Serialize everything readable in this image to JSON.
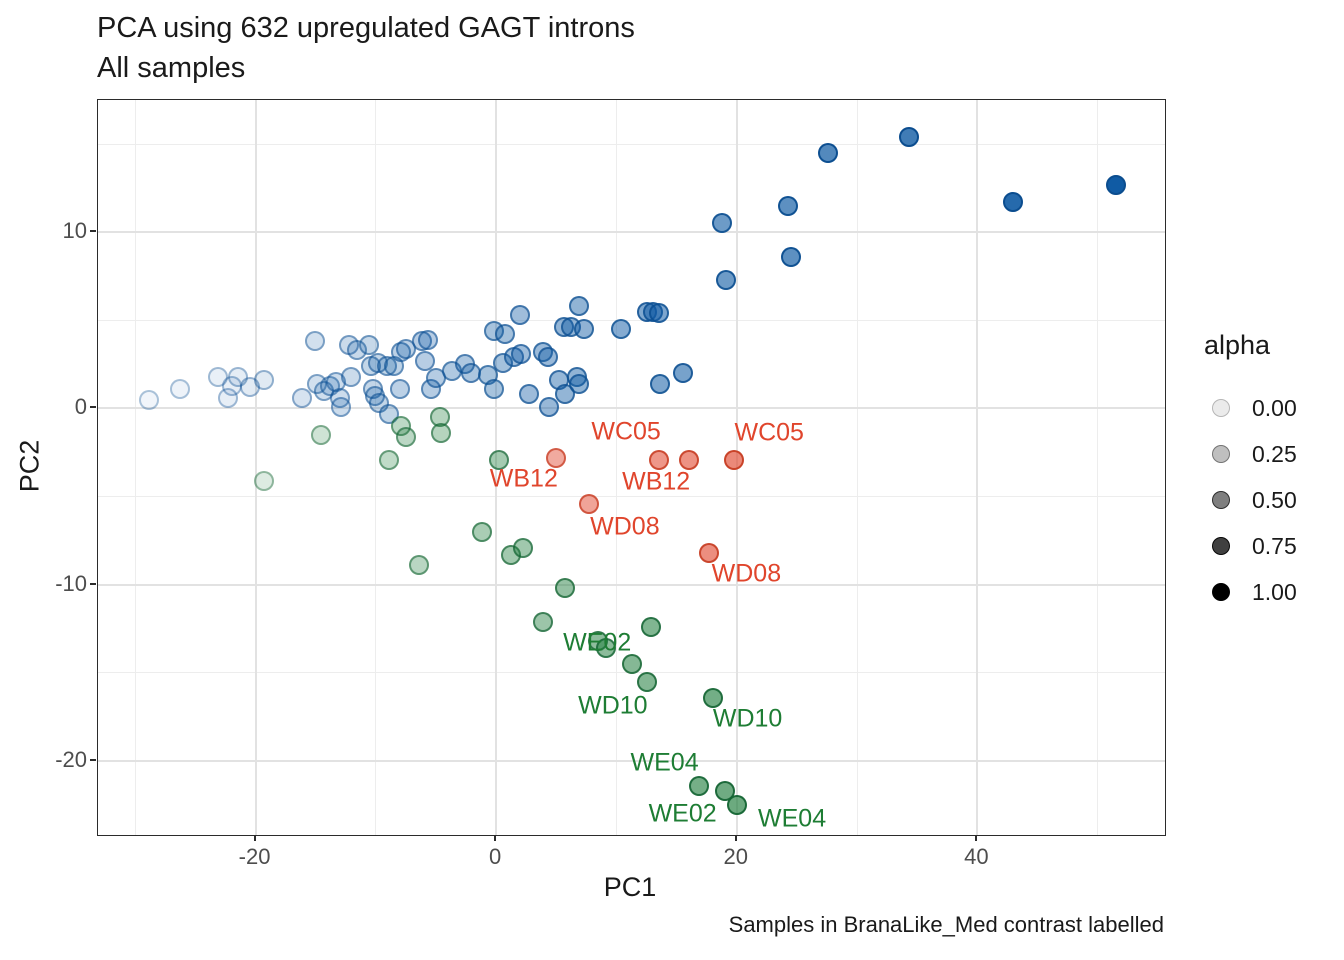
{
  "colors": {
    "blue_fill": "#105BA4",
    "blue_stroke": "#0B4D8F",
    "green_fill": "#1D7C3B",
    "green_stroke": "#136332",
    "red_fill": "#E0462D",
    "red_stroke": "#C53A20",
    "grid_major": "#e2e2e2",
    "grid_minor": "#efefef",
    "panel_border": "#2b2b2b",
    "tick_text": "#4d4d4d"
  },
  "legend": {
    "title": "alpha",
    "entries": [
      {
        "label": "0.00",
        "fill_alpha": 0.08
      },
      {
        "label": "0.25",
        "fill_alpha": 0.25
      },
      {
        "label": "0.50",
        "fill_alpha": 0.5
      },
      {
        "label": "0.75",
        "fill_alpha": 0.75
      },
      {
        "label": "1.00",
        "fill_alpha": 1.0
      }
    ]
  },
  "chart_data": {
    "type": "scatter",
    "title": "PCA using 632 upregulated GAGT introns",
    "subtitle": "All samples",
    "caption": "Samples in BranaLike_Med contrast labelled",
    "xlabel": "PC1",
    "ylabel": "PC2",
    "xlim": [
      -33.1,
      55.6
    ],
    "ylim": [
      -24.2,
      17.5
    ],
    "x_ticks": [
      -20,
      0,
      20,
      40
    ],
    "y_ticks": [
      10,
      0,
      -10,
      -20
    ],
    "x_minor_breaks": [
      -30,
      -10,
      10,
      30,
      50
    ],
    "y_minor_breaks": [
      15,
      5,
      -5,
      -15
    ],
    "grid": true,
    "legend_position": "right",
    "alpha_legend": [
      0.0,
      0.25,
      0.5,
      0.75,
      1.0
    ],
    "series": [
      {
        "name": "blue",
        "rgb": [
          16,
          91,
          164
        ],
        "border_rgb": [
          11,
          77,
          143
        ],
        "points": [
          [
            -28.9,
            0.5,
            0.06
          ],
          [
            -26.3,
            1.1,
            0.07
          ],
          [
            -23.1,
            1.8,
            0.09
          ],
          [
            -22.3,
            0.6,
            0.1
          ],
          [
            -22.0,
            1.3,
            0.1
          ],
          [
            -21.5,
            1.8,
            0.11
          ],
          [
            -20.5,
            1.2,
            0.12
          ],
          [
            -19.3,
            1.6,
            0.13
          ],
          [
            -16.1,
            0.6,
            0.17
          ],
          [
            -15.1,
            3.8,
            0.19
          ],
          [
            -14.9,
            1.4,
            0.19
          ],
          [
            -14.3,
            1.0,
            0.2
          ],
          [
            -13.8,
            1.3,
            0.2
          ],
          [
            -13.3,
            1.5,
            0.21
          ],
          [
            -13.0,
            0.6,
            0.21
          ],
          [
            -12.9,
            0.1,
            0.21
          ],
          [
            -12.2,
            3.6,
            0.22
          ],
          [
            -12.1,
            1.8,
            0.22
          ],
          [
            -11.6,
            3.3,
            0.23
          ],
          [
            -10.6,
            3.6,
            0.24
          ],
          [
            -10.4,
            2.4,
            0.25
          ],
          [
            -10.2,
            1.1,
            0.25
          ],
          [
            -10.1,
            0.7,
            0.25
          ],
          [
            -9.8,
            2.6,
            0.25
          ],
          [
            -9.7,
            0.3,
            0.25
          ],
          [
            -9.1,
            2.4,
            0.26
          ],
          [
            -8.9,
            -0.3,
            0.26
          ],
          [
            -8.5,
            2.4,
            0.27
          ],
          [
            -8.0,
            1.1,
            0.28
          ],
          [
            -7.9,
            3.2,
            0.28
          ],
          [
            -7.5,
            3.4,
            0.28
          ],
          [
            -6.2,
            3.8,
            0.3
          ],
          [
            -5.9,
            2.7,
            0.3
          ],
          [
            -5.7,
            3.9,
            0.3
          ],
          [
            -5.4,
            1.1,
            0.31
          ],
          [
            -5.0,
            1.7,
            0.31
          ],
          [
            -3.7,
            2.1,
            0.33
          ],
          [
            -2.6,
            2.5,
            0.34
          ],
          [
            -2.1,
            2.0,
            0.35
          ],
          [
            -0.7,
            1.9,
            0.37
          ],
          [
            -0.2,
            4.4,
            0.37
          ],
          [
            -0.2,
            1.1,
            0.37
          ],
          [
            0.6,
            2.6,
            0.38
          ],
          [
            0.7,
            4.2,
            0.38
          ],
          [
            1.5,
            2.9,
            0.39
          ],
          [
            2.0,
            5.3,
            0.4
          ],
          [
            2.1,
            3.1,
            0.4
          ],
          [
            2.7,
            0.8,
            0.41
          ],
          [
            3.9,
            3.2,
            0.42
          ],
          [
            4.3,
            2.9,
            0.43
          ],
          [
            4.4,
            0.1,
            0.43
          ],
          [
            5.2,
            1.6,
            0.44
          ],
          [
            5.6,
            4.6,
            0.45
          ],
          [
            5.7,
            0.8,
            0.45
          ],
          [
            6.2,
            4.6,
            0.45
          ],
          [
            6.7,
            1.8,
            0.46
          ],
          [
            6.9,
            5.8,
            0.46
          ],
          [
            6.9,
            1.4,
            0.46
          ],
          [
            7.3,
            4.5,
            0.47
          ],
          [
            10.4,
            4.5,
            0.51
          ],
          [
            12.5,
            5.5,
            0.53
          ],
          [
            13.0,
            5.5,
            0.54
          ],
          [
            13.5,
            5.4,
            0.54
          ],
          [
            13.6,
            1.4,
            0.55
          ],
          [
            15.5,
            2.0,
            0.57
          ],
          [
            18.8,
            10.5,
            0.61
          ],
          [
            19.1,
            7.3,
            0.61
          ],
          [
            24.3,
            11.5,
            0.68
          ],
          [
            24.5,
            8.6,
            0.68
          ],
          [
            27.6,
            14.5,
            0.72
          ],
          [
            34.3,
            15.4,
            0.8
          ],
          [
            43.0,
            11.7,
            0.91
          ],
          [
            51.5,
            12.7,
            1.0
          ]
        ]
      },
      {
        "name": "green",
        "rgb": [
          29,
          124,
          59
        ],
        "border_rgb": [
          19,
          99,
          50
        ],
        "points": [
          [
            -19.3,
            -4.1,
            0.15
          ],
          [
            -14.6,
            -1.5,
            0.21
          ],
          [
            -8.9,
            -2.9,
            0.28
          ],
          [
            -7.9,
            -1.0,
            0.29
          ],
          [
            -7.5,
            -1.6,
            0.3
          ],
          [
            -4.7,
            -0.5,
            0.33
          ],
          [
            -4.6,
            -1.4,
            0.33
          ],
          [
            0.2,
            -2.9,
            0.4
          ],
          [
            -6.4,
            -8.9,
            0.31
          ],
          [
            -1.2,
            -7.0,
            0.38
          ],
          [
            1.2,
            -8.3,
            0.41
          ],
          [
            2.2,
            -7.9,
            0.42
          ],
          [
            3.9,
            -12.1,
            0.44
          ],
          [
            5.7,
            -10.2,
            0.47
          ],
          [
            8.5,
            -13.2,
            0.5
          ],
          [
            9.1,
            -13.6,
            0.51
          ],
          [
            11.3,
            -14.5,
            0.54
          ],
          [
            12.5,
            -15.5,
            0.55
          ],
          [
            12.9,
            -12.4,
            0.56
          ],
          [
            18.0,
            -16.4,
            0.62
          ],
          [
            16.9,
            -21.4,
            0.61
          ],
          [
            19.0,
            -21.7,
            0.64
          ],
          [
            20.0,
            -22.5,
            0.65
          ]
        ]
      },
      {
        "name": "red",
        "rgb": [
          224,
          70,
          45
        ],
        "border_rgb": [
          197,
          58,
          32
        ],
        "points": [
          [
            5.0,
            -2.8,
            0.46
          ],
          [
            7.7,
            -5.4,
            0.49
          ],
          [
            13.5,
            -2.9,
            0.56
          ],
          [
            16.0,
            -2.9,
            0.59
          ],
          [
            17.7,
            -8.2,
            0.61
          ],
          [
            19.8,
            -2.9,
            0.64
          ]
        ]
      }
    ],
    "point_labels": [
      {
        "text": "WC05",
        "x": 10.8,
        "y": -1.35,
        "color": "red"
      },
      {
        "text": "WC05",
        "x": 22.7,
        "y": -1.4,
        "color": "red"
      },
      {
        "text": "WB12",
        "x": 2.3,
        "y": -4.0,
        "color": "red"
      },
      {
        "text": "WB12",
        "x": 13.3,
        "y": -4.2,
        "color": "red"
      },
      {
        "text": "WD08",
        "x": 10.7,
        "y": -6.7,
        "color": "red"
      },
      {
        "text": "WD08",
        "x": 20.8,
        "y": -9.4,
        "color": "red"
      },
      {
        "text": "WE02",
        "x": 8.4,
        "y": -13.3,
        "color": "green"
      },
      {
        "text": "WD10",
        "x": 9.7,
        "y": -16.9,
        "color": "green"
      },
      {
        "text": "WD10",
        "x": 20.9,
        "y": -17.6,
        "color": "green"
      },
      {
        "text": "WE04",
        "x": 14.0,
        "y": -20.1,
        "color": "green"
      },
      {
        "text": "WE02",
        "x": 15.5,
        "y": -23.0,
        "color": "green"
      },
      {
        "text": "WE04",
        "x": 24.6,
        "y": -23.3,
        "color": "green"
      }
    ],
    "label_colors": {
      "red": "#E0452C",
      "green": "#1E7D34"
    }
  }
}
